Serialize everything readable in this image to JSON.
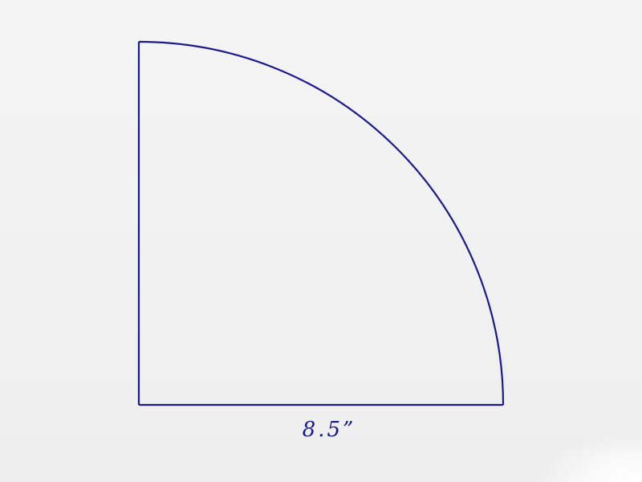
{
  "diagram": {
    "shape": "quarter-circle",
    "dimension_label": "8.5”",
    "stroke_color": "#1a1a8c",
    "background_color": "#f2f2f2"
  }
}
